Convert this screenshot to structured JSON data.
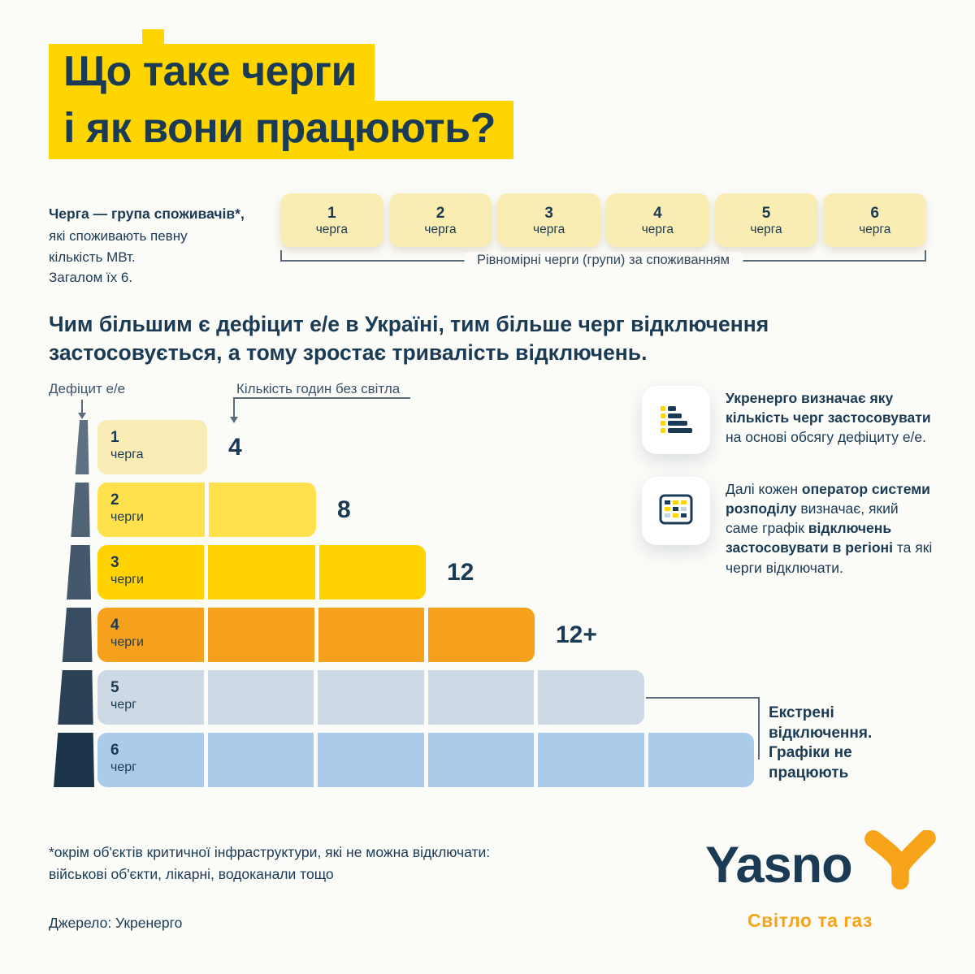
{
  "colors": {
    "navy": "#1B3A54",
    "yellow": "#FFD500",
    "orange": "#F8A41B",
    "cream": "#FAEDB3",
    "line": "#5B6B7A",
    "bg": "#FBFBF8"
  },
  "title": {
    "line1": "Що таке черги",
    "line2": "і як вони працюють?"
  },
  "intro": {
    "lead_bold": "Черга — група споживачів*,",
    "line2": "які споживають певну",
    "line3": "кількість МВт.",
    "line4": "Загалом їх 6.",
    "queues": [
      {
        "num": "1",
        "label": "черга"
      },
      {
        "num": "2",
        "label": "черга"
      },
      {
        "num": "3",
        "label": "черга"
      },
      {
        "num": "4",
        "label": "черга"
      },
      {
        "num": "5",
        "label": "черга"
      },
      {
        "num": "6",
        "label": "черга"
      }
    ],
    "bracket_label": "Рівномірні черги (групи) за споживанням"
  },
  "statement": {
    "line1": "Чим більшим є дефіцит е/е в Україні, тим більше черг відключення",
    "line2": "застосовується, а тому зростає тривалість відключень."
  },
  "chart_data": {
    "type": "bar",
    "orientation": "horizontal",
    "y_axis_label": "Дефіцит е/е",
    "x_axis_label": "Кількість годин без світла",
    "rows": [
      {
        "num": "1",
        "label": "черга",
        "segments": 1,
        "hours": "4",
        "color": "#F9ECB4"
      },
      {
        "num": "2",
        "label": "черги",
        "segments": 2,
        "hours": "8",
        "color": "#FFE14D"
      },
      {
        "num": "3",
        "label": "черги",
        "segments": 3,
        "hours": "12",
        "color": "#FFD200"
      },
      {
        "num": "4",
        "label": "черги",
        "segments": 4,
        "hours": "12+",
        "color": "#F6A11E"
      },
      {
        "num": "5",
        "label": "черг",
        "segments": 5,
        "hours": "",
        "color": "#CDD9E4"
      },
      {
        "num": "6",
        "label": "черг",
        "segments": 6,
        "hours": "",
        "color": "#ABCBEB"
      }
    ],
    "emergency": {
      "line1": "Екстрені відключення.",
      "line2": "Графіки не працюють"
    }
  },
  "info_cards": [
    {
      "icon": "bar-chart-icon",
      "parts": [
        {
          "text": "Укренерго визначає яку кількість черг застосовувати",
          "bold": true
        },
        {
          "text": " на основі обсягу дефіциту е/е.",
          "bold": false
        }
      ]
    },
    {
      "icon": "schedule-grid-icon",
      "parts": [
        {
          "text": "Далі кожен ",
          "bold": false
        },
        {
          "text": "оператор системи розподілу",
          "bold": true
        },
        {
          "text": " визначає, який саме графік ",
          "bold": false
        },
        {
          "text": "відключень застосовувати в регіоні",
          "bold": true
        },
        {
          "text": " та які черги відключати.",
          "bold": false
        }
      ]
    }
  ],
  "footer": {
    "footnote_line1": "*окрім об'єктів критичної інфраструктури, які не можна відключати:",
    "footnote_line2": "військові об'єкти, лікарні, водоканали тощо",
    "source": "Джерело: Укренерго",
    "brand": "Yasno",
    "tagline": "Світло та газ"
  }
}
